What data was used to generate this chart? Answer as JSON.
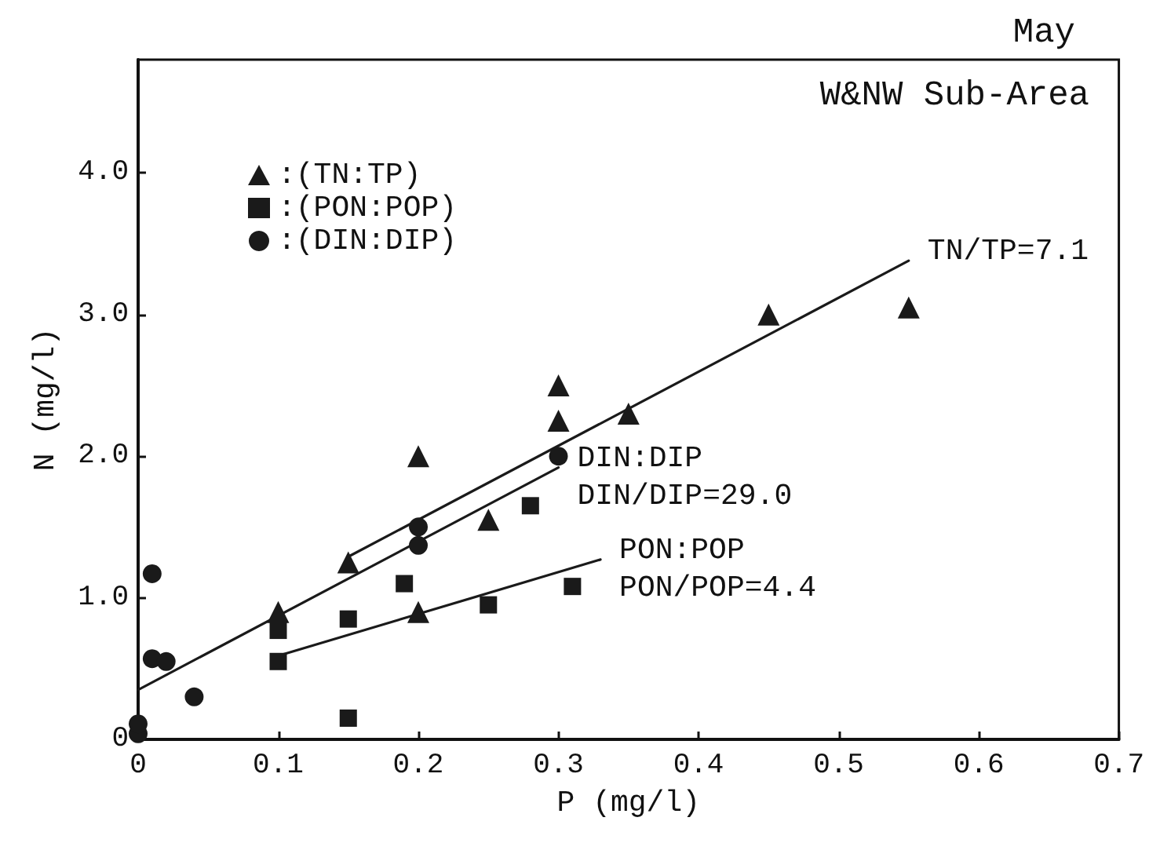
{
  "chart_data": {
    "type": "scatter",
    "title": "May",
    "subtitle": "W&NW Sub-Area",
    "xlabel": "P (mg/l)",
    "ylabel": "N (mg/l)",
    "xlim": [
      0,
      0.7
    ],
    "xticks": [
      0,
      0.1,
      0.2,
      0.3,
      0.4,
      0.5,
      0.6,
      0.7
    ],
    "ylim": [
      0,
      4.8
    ],
    "yticks": [
      0,
      {
        "value": 1,
        "label": "1.0"
      },
      {
        "value": 2,
        "label": "2.0"
      },
      {
        "value": 3,
        "label": "3.0"
      },
      {
        "value": 4,
        "label": "4.0"
      }
    ],
    "legend": "top left",
    "series": [
      {
        "name": ":(TN:TP)",
        "color": "#1a1a1a",
        "marker": "triangle",
        "x": [
          0.1,
          0.15,
          0.2,
          0.2,
          0.25,
          0.3,
          0.3,
          0.35,
          0.45,
          0.55
        ],
        "values": [
          0.9,
          1.25,
          2.0,
          0.9,
          1.55,
          2.5,
          2.25,
          2.3,
          3.0,
          3.05
        ]
      },
      {
        "name": ":(PON:POP)",
        "color": "#1a1a1a",
        "marker": "square",
        "x": [
          0.1,
          0.1,
          0.15,
          0.15,
          0.19,
          0.25,
          0.28,
          0.31
        ],
        "values": [
          0.77,
          0.55,
          0.85,
          0.15,
          1.1,
          0.95,
          1.65,
          1.08
        ]
      },
      {
        "name": ":(DIN:DIP)",
        "color": "#1a1a1a",
        "marker": "circle",
        "x": [
          0,
          0,
          0.01,
          0.01,
          0.02,
          0.04,
          0.2,
          0.2,
          0.3
        ],
        "values": [
          0.04,
          0.11,
          1.17,
          0.57,
          0.55,
          0.3,
          1.5,
          1.37,
          2.0
        ]
      },
      {
        "type": "line",
        "color": "#1a1a1a",
        "marker": "none",
        "x": [
          0.15,
          0.55
        ],
        "values": [
          1.29,
          3.38
        ]
      },
      {
        "type": "line",
        "color": "#1a1a1a",
        "marker": "none",
        "x": [
          0,
          0.3
        ],
        "values": [
          0.35,
          1.92
        ]
      },
      {
        "type": "line",
        "color": "#1a1a1a",
        "marker": "none",
        "x": [
          0.1,
          0.33
        ],
        "values": [
          0.59,
          1.27
        ]
      }
    ],
    "annotations": [
      {
        "text": "TN/TP=7.1",
        "x": 0.55,
        "y": 3.38
      },
      {
        "text": "DIN:DIP",
        "x": 0.3,
        "y": 1.92
      },
      {
        "text": "DIN/DIP=29.0",
        "x": 0.3,
        "y": 1.92
      },
      {
        "text": "PON:POP",
        "x": 0.33,
        "y": 1.27
      },
      {
        "text": "PON/POP=4.4",
        "x": 0.33,
        "y": 1.27
      }
    ]
  }
}
